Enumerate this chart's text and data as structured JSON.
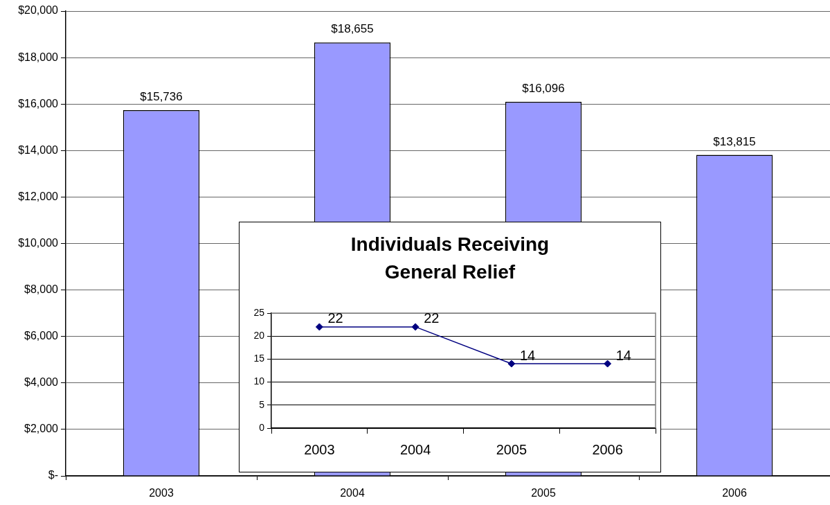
{
  "chart_data": [
    {
      "type": "bar",
      "categories": [
        "2003",
        "2004",
        "2005",
        "2006"
      ],
      "values": [
        15736,
        18655,
        16096,
        13815
      ],
      "color": "#9999ff",
      "value_labels": [
        "$15,736",
        "$18,655",
        "$16,096",
        "$13,815"
      ],
      "ylim": [
        0,
        20000
      ],
      "yticks": [
        {
          "value": 0,
          "label": "$-"
        },
        {
          "value": 2000,
          "label": "$2,000"
        },
        {
          "value": 4000,
          "label": "$4,000"
        },
        {
          "value": 6000,
          "label": "$6,000"
        },
        {
          "value": 8000,
          "label": "$8,000"
        },
        {
          "value": 10000,
          "label": "$10,000"
        },
        {
          "value": 12000,
          "label": "$12,000"
        },
        {
          "value": 14000,
          "label": "$14,000"
        },
        {
          "value": 16000,
          "label": "$16,000"
        },
        {
          "value": 18000,
          "label": "$18,000"
        },
        {
          "value": 20000,
          "label": "$20,000"
        }
      ],
      "grid": "y"
    },
    {
      "type": "line",
      "title": "Individuals Receiving General Relief",
      "categories": [
        "2003",
        "2004",
        "2005",
        "2006"
      ],
      "values": [
        22,
        22,
        14,
        14
      ],
      "color": "#000080",
      "marker": "diamond",
      "data_labels": true,
      "ylim": [
        0,
        25
      ],
      "yticks": [
        0,
        5,
        10,
        15,
        20,
        25
      ],
      "grid": "y"
    }
  ]
}
